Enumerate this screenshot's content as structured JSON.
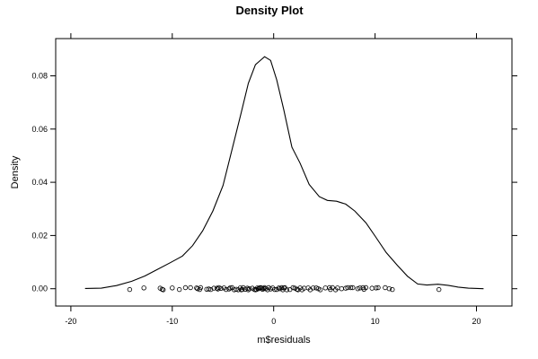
{
  "chart_data": {
    "type": "line",
    "title": "Density Plot",
    "xlabel": "m$residuals",
    "ylabel": "Density",
    "xlim": [
      -21.5,
      23.5
    ],
    "ylim": [
      -0.0065,
      0.094
    ],
    "x_ticks": [
      -20,
      -10,
      0,
      10,
      20
    ],
    "y_ticks": [
      0.0,
      0.02,
      0.04,
      0.06,
      0.08
    ],
    "grid": false,
    "legend": "none",
    "colors": {
      "line": "#000000",
      "points": "#000000",
      "frame": "#000000"
    },
    "series": [
      {
        "style": "line",
        "x": [
          -18.6,
          -17.0,
          -15.5,
          -14.0,
          -12.7,
          -11.5,
          -10.2,
          -9.0,
          -8.0,
          -7.0,
          -6.0,
          -5.0,
          -4.1,
          -3.2,
          -2.5,
          -1.8,
          -1.2,
          -0.9,
          -0.3,
          0.3,
          1.0,
          1.8,
          2.6,
          3.5,
          4.5,
          5.3,
          6.2,
          7.1,
          8.0,
          9.1,
          10.0,
          11.1,
          12.2,
          13.2,
          14.2,
          15.1,
          16.2,
          17.2,
          18.2,
          19.2,
          20.7
        ],
        "y": [
          0.0001,
          0.0002,
          0.0012,
          0.0028,
          0.0048,
          0.0072,
          0.0098,
          0.0123,
          0.0162,
          0.0218,
          0.0292,
          0.0388,
          0.0524,
          0.0662,
          0.0772,
          0.0842,
          0.0862,
          0.0872,
          0.0858,
          0.0785,
          0.0672,
          0.0532,
          0.0472,
          0.0392,
          0.0346,
          0.0332,
          0.0329,
          0.0318,
          0.0292,
          0.0248,
          0.0198,
          0.0136,
          0.0088,
          0.0047,
          0.0018,
          0.0014,
          0.0017,
          0.0013,
          0.0006,
          0.0002,
          0.0
        ]
      },
      {
        "style": "points",
        "x": [
          -14.2,
          -12.8,
          -11.2,
          -11.0,
          -10.9,
          -10.0,
          -9.3,
          -8.7,
          -8.2,
          -7.6,
          -7.5,
          -7.3,
          -7.2,
          -6.6,
          -6.4,
          -6.2,
          -5.9,
          -5.6,
          -5.5,
          -5.4,
          -5.2,
          -4.9,
          -4.7,
          -4.4,
          -4.3,
          -4.1,
          -3.9,
          -3.7,
          -3.5,
          -3.3,
          -3.2,
          -3.1,
          -3.0,
          -2.8,
          -2.6,
          -2.5,
          -2.4,
          -2.1,
          -1.9,
          -1.8,
          -1.7,
          -1.6,
          -1.5,
          -1.4,
          -1.3,
          -1.2,
          -1.1,
          -1.0,
          -0.9,
          -0.8,
          -0.6,
          -0.5,
          -0.3,
          -0.1,
          0.1,
          0.3,
          0.5,
          0.6,
          0.8,
          0.9,
          1.0,
          1.1,
          1.3,
          1.6,
          1.9,
          2.1,
          2.3,
          2.4,
          2.6,
          2.8,
          3.0,
          3.4,
          3.6,
          3.9,
          4.2,
          4.4,
          4.6,
          5.1,
          5.5,
          5.6,
          5.8,
          6.1,
          6.3,
          6.7,
          7.1,
          7.3,
          7.6,
          7.8,
          8.3,
          8.5,
          8.8,
          8.9,
          9.1,
          9.7,
          10.1,
          10.3,
          11.0,
          11.4,
          11.7,
          16.3
        ],
        "y": [
          -0.0003,
          0.0003,
          0.0002,
          -0.0002,
          -0.0004,
          0.0003,
          -0.0003,
          0.0004,
          0.0004,
          0.0003,
          0.0,
          -0.0003,
          0.0004,
          -0.0002,
          -0.0001,
          -0.0003,
          0.0002,
          0.0002,
          -0.0001,
          0.0004,
          0.0001,
          0.0003,
          -0.0003,
          -0.0001,
          0.0003,
          0.0004,
          -0.0004,
          -0.0002,
          -0.0004,
          0.0003,
          -0.0004,
          -0.0003,
          0.0004,
          -0.0002,
          0.0002,
          -0.0004,
          0.0,
          0.0002,
          -0.0003,
          -0.0004,
          -0.0003,
          0.0003,
          0.0,
          0.0003,
          0.0004,
          0.0003,
          -0.0002,
          0.0001,
          0.0004,
          0.0,
          -0.0004,
          0.0004,
          -0.0001,
          0.0003,
          -0.0003,
          -0.0003,
          0.0003,
          0.0,
          0.0004,
          -0.0004,
          0.0003,
          0.0004,
          -0.0004,
          -0.0003,
          0.0004,
          0.0002,
          -0.0002,
          -0.0004,
          0.0003,
          -0.0004,
          0.0002,
          0.0003,
          -0.0004,
          0.0003,
          0.0003,
          0.0,
          -0.0004,
          0.0003,
          0.0004,
          -0.0003,
          0.0004,
          -0.0004,
          0.0003,
          0.0,
          0.0002,
          0.0004,
          0.0004,
          0.0004,
          0.0,
          0.0003,
          0.0004,
          -0.0002,
          0.0004,
          0.0002,
          0.0003,
          0.0004,
          0.0004,
          0.0,
          -0.0003,
          -0.0003
        ]
      }
    ]
  }
}
